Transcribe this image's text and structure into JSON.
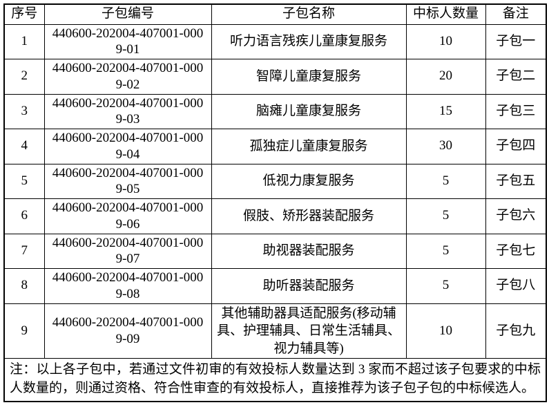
{
  "colors": {
    "background": "#ffffff",
    "border": "#000000",
    "text": "#000000"
  },
  "table": {
    "headers": [
      "序号",
      "子包编号",
      "子包名称",
      "中标人数量",
      "备注"
    ],
    "rows": [
      {
        "no": "1",
        "code": "440600-202004-407001-0009-01",
        "name": "听力语言残疾儿童康复服务",
        "count": "10",
        "remark": "子包一"
      },
      {
        "no": "2",
        "code": "440600-202004-407001-0009-02",
        "name": "智障儿童康复服务",
        "count": "20",
        "remark": "子包二"
      },
      {
        "no": "3",
        "code": "440600-202004-407001-0009-03",
        "name": "脑瘫儿童康复服务",
        "count": "15",
        "remark": "子包三"
      },
      {
        "no": "4",
        "code": "440600-202004-407001-0009-04",
        "name": "孤独症儿童康复服务",
        "count": "30",
        "remark": "子包四"
      },
      {
        "no": "5",
        "code": "440600-202004-407001-0009-05",
        "name": "低视力康复服务",
        "count": "5",
        "remark": "子包五"
      },
      {
        "no": "6",
        "code": "440600-202004-407001-0009-06",
        "name": "假肢、矫形器装配服务",
        "count": "5",
        "remark": "子包六"
      },
      {
        "no": "7",
        "code": "440600-202004-407001-0009-07",
        "name": "助视器装配服务",
        "count": "5",
        "remark": "子包七"
      },
      {
        "no": "8",
        "code": "440600-202004-407001-0009-08",
        "name": "助听器装配服务",
        "count": "5",
        "remark": "子包八"
      },
      {
        "no": "9",
        "code": "440600-202004-407001-0009-09",
        "name": "其他辅助器具适配服务(移动辅具、护理辅具、日常生活辅具、视力辅具等)",
        "count": "10",
        "remark": "子包九"
      }
    ],
    "note": "注：以上各子包中，若通过文件初审的有效投标人数量达到 3 家而不超过该子包要求的中标人数量的，则通过资格、符合性审查的有效投标人，直接推荐为该子包子包的中标候选人。"
  }
}
